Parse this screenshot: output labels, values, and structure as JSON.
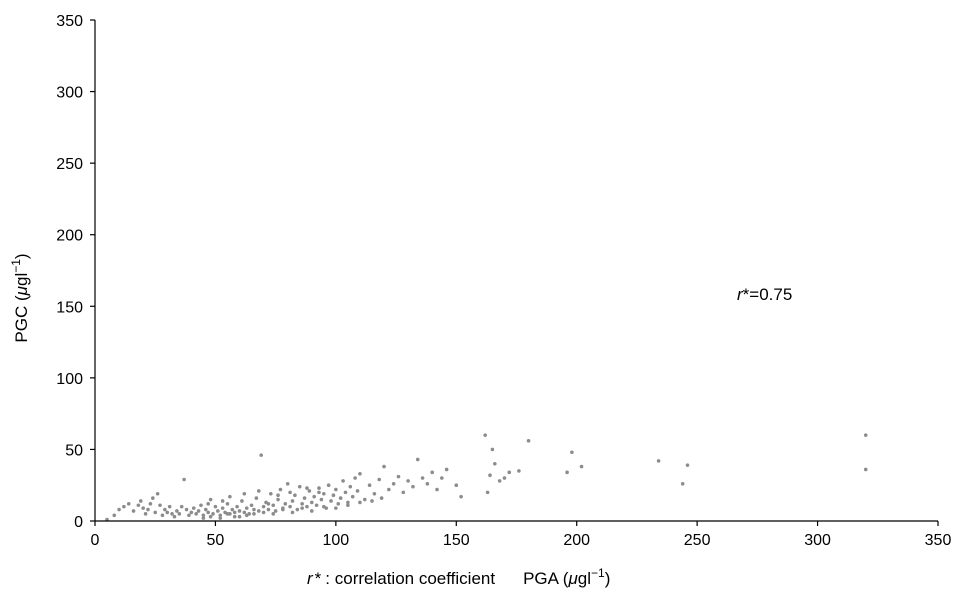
{
  "chart_data": {
    "type": "scatter",
    "title": "",
    "xlabel_prefix": "r",
    "xlabel_star": "*",
    "xlabel_note": ": correlation coefficient",
    "xlabel_quantity": "PGA (",
    "xlabel_mu": "μ",
    "xlabel_unit": "gl",
    "xlabel_exp": "−1",
    "xlabel_close": ")",
    "ylabel_quantity": "PGC (",
    "ylabel_mu": "μ",
    "ylabel_unit": "gl",
    "ylabel_exp": "−1",
    "ylabel_close": ")",
    "annotation_r": "r",
    "annotation_star": "*",
    "annotation_value": "=0.75",
    "xlim": [
      0,
      350
    ],
    "ylim": [
      0,
      350
    ],
    "x_ticks": [
      0,
      50,
      100,
      150,
      200,
      250,
      300,
      350
    ],
    "y_ticks": [
      0,
      50,
      100,
      150,
      200,
      250,
      300,
      350
    ],
    "grid": false,
    "legend": "none",
    "marker_color": "#8c8c8c",
    "series": [
      {
        "points": [
          [
            5,
            1
          ],
          [
            8,
            4
          ],
          [
            10,
            8
          ],
          [
            12,
            10
          ],
          [
            14,
            12
          ],
          [
            16,
            7
          ],
          [
            18,
            11
          ],
          [
            19,
            14
          ],
          [
            20,
            9
          ],
          [
            21,
            5
          ],
          [
            22,
            8
          ],
          [
            23,
            12
          ],
          [
            24,
            16
          ],
          [
            25,
            6
          ],
          [
            26,
            19
          ],
          [
            27,
            11
          ],
          [
            28,
            4
          ],
          [
            29,
            8
          ],
          [
            30,
            6
          ],
          [
            31,
            10
          ],
          [
            32,
            5
          ],
          [
            33,
            3
          ],
          [
            34,
            7
          ],
          [
            35,
            5
          ],
          [
            36,
            10
          ],
          [
            37,
            29
          ],
          [
            38,
            8
          ],
          [
            39,
            4
          ],
          [
            40,
            6
          ],
          [
            41,
            9
          ],
          [
            42,
            5
          ],
          [
            43,
            7
          ],
          [
            44,
            11
          ],
          [
            45,
            4
          ],
          [
            46,
            8
          ],
          [
            47,
            6
          ],
          [
            48,
            15
          ],
          [
            49,
            5
          ],
          [
            50,
            10
          ],
          [
            51,
            7
          ],
          [
            52,
            4
          ],
          [
            53,
            9
          ],
          [
            54,
            6
          ],
          [
            55,
            12
          ],
          [
            56,
            5
          ],
          [
            57,
            8
          ],
          [
            58,
            3
          ],
          [
            59,
            10
          ],
          [
            60,
            7
          ],
          [
            61,
            14
          ],
          [
            62,
            6
          ],
          [
            63,
            9
          ],
          [
            64,
            5
          ],
          [
            65,
            11
          ],
          [
            66,
            8
          ],
          [
            67,
            16
          ],
          [
            68,
            7
          ],
          [
            69,
            46
          ],
          [
            70,
            10
          ],
          [
            71,
            13
          ],
          [
            72,
            8
          ],
          [
            73,
            19
          ],
          [
            74,
            11
          ],
          [
            75,
            7
          ],
          [
            76,
            15
          ],
          [
            77,
            22
          ],
          [
            78,
            9
          ],
          [
            79,
            12
          ],
          [
            80,
            26
          ],
          [
            81,
            10
          ],
          [
            82,
            14
          ],
          [
            83,
            18
          ],
          [
            84,
            8
          ],
          [
            85,
            24
          ],
          [
            86,
            12
          ],
          [
            87,
            16
          ],
          [
            88,
            10
          ],
          [
            89,
            21
          ],
          [
            90,
            13
          ],
          [
            91,
            17
          ],
          [
            92,
            11
          ],
          [
            93,
            23
          ],
          [
            94,
            15
          ],
          [
            95,
            19
          ],
          [
            96,
            9
          ],
          [
            97,
            25
          ],
          [
            98,
            14
          ],
          [
            99,
            18
          ],
          [
            100,
            22
          ],
          [
            101,
            12
          ],
          [
            102,
            16
          ],
          [
            103,
            28
          ],
          [
            104,
            20
          ],
          [
            105,
            13
          ],
          [
            106,
            24
          ],
          [
            107,
            17
          ],
          [
            108,
            30
          ],
          [
            109,
            21
          ],
          [
            110,
            33
          ],
          [
            112,
            15
          ],
          [
            114,
            25
          ],
          [
            116,
            19
          ],
          [
            118,
            29
          ],
          [
            120,
            38
          ],
          [
            122,
            22
          ],
          [
            124,
            26
          ],
          [
            126,
            31
          ],
          [
            128,
            20
          ],
          [
            130,
            28
          ],
          [
            132,
            24
          ],
          [
            134,
            43
          ],
          [
            136,
            30
          ],
          [
            138,
            26
          ],
          [
            140,
            34
          ],
          [
            142,
            22
          ],
          [
            144,
            30
          ],
          [
            146,
            36
          ],
          [
            150,
            25
          ],
          [
            152,
            17
          ],
          [
            162,
            60
          ],
          [
            163,
            20
          ],
          [
            164,
            32
          ],
          [
            165,
            50
          ],
          [
            166,
            40
          ],
          [
            168,
            28
          ],
          [
            170,
            30
          ],
          [
            172,
            34
          ],
          [
            176,
            35
          ],
          [
            180,
            56
          ],
          [
            196,
            34
          ],
          [
            198,
            48
          ],
          [
            202,
            38
          ],
          [
            234,
            42
          ],
          [
            244,
            26
          ],
          [
            246,
            39
          ],
          [
            320,
            60
          ],
          [
            320,
            36
          ],
          [
            45,
            2
          ],
          [
            48,
            3
          ],
          [
            52,
            2
          ],
          [
            55,
            5
          ],
          [
            58,
            6
          ],
          [
            60,
            3
          ],
          [
            63,
            4
          ],
          [
            66,
            5
          ],
          [
            70,
            6
          ],
          [
            74,
            5
          ],
          [
            78,
            8
          ],
          [
            82,
            6
          ],
          [
            86,
            9
          ],
          [
            90,
            7
          ],
          [
            95,
            10
          ],
          [
            100,
            9
          ],
          [
            105,
            11
          ],
          [
            110,
            13
          ],
          [
            115,
            14
          ],
          [
            119,
            16
          ],
          [
            47,
            12
          ],
          [
            53,
            14
          ],
          [
            56,
            17
          ],
          [
            62,
            19
          ],
          [
            68,
            21
          ],
          [
            72,
            12
          ],
          [
            76,
            18
          ],
          [
            81,
            20
          ],
          [
            88,
            23
          ],
          [
            93,
            20
          ]
        ]
      }
    ]
  }
}
